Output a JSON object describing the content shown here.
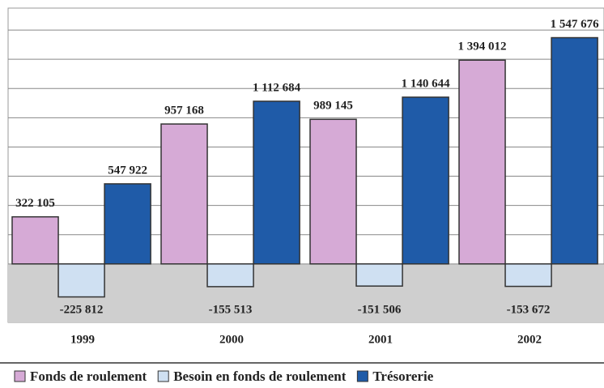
{
  "chart_data": {
    "type": "bar",
    "categories": [
      "1999",
      "2000",
      "2001",
      "2002"
    ],
    "series": [
      {
        "name": "Fonds de roulement",
        "color": "#d6aad6",
        "values": [
          322105,
          957168,
          989145,
          1394012
        ],
        "value_labels": [
          "322 105",
          "957 168",
          "989 145",
          "1 394 012"
        ]
      },
      {
        "name": "Besoin en fonds de roulement",
        "color": "#cfe0f2",
        "values": [
          -225812,
          -155513,
          -151506,
          -153672
        ],
        "value_labels": [
          "-225 812",
          "-155 513",
          "-151 506",
          "-153 672"
        ]
      },
      {
        "name": "Trésorerie",
        "color": "#1f5ba8",
        "values": [
          547922,
          1112684,
          1140644,
          1547676
        ],
        "value_labels": [
          "547 922",
          "1 112 684",
          "1 140 644",
          "1 547 676"
        ]
      }
    ],
    "ylim": [
      -400000,
      1750000
    ],
    "yticks": [
      0,
      200000,
      400000,
      600000,
      800000,
      1000000,
      1200000,
      1400000,
      1600000
    ],
    "grid": true
  }
}
